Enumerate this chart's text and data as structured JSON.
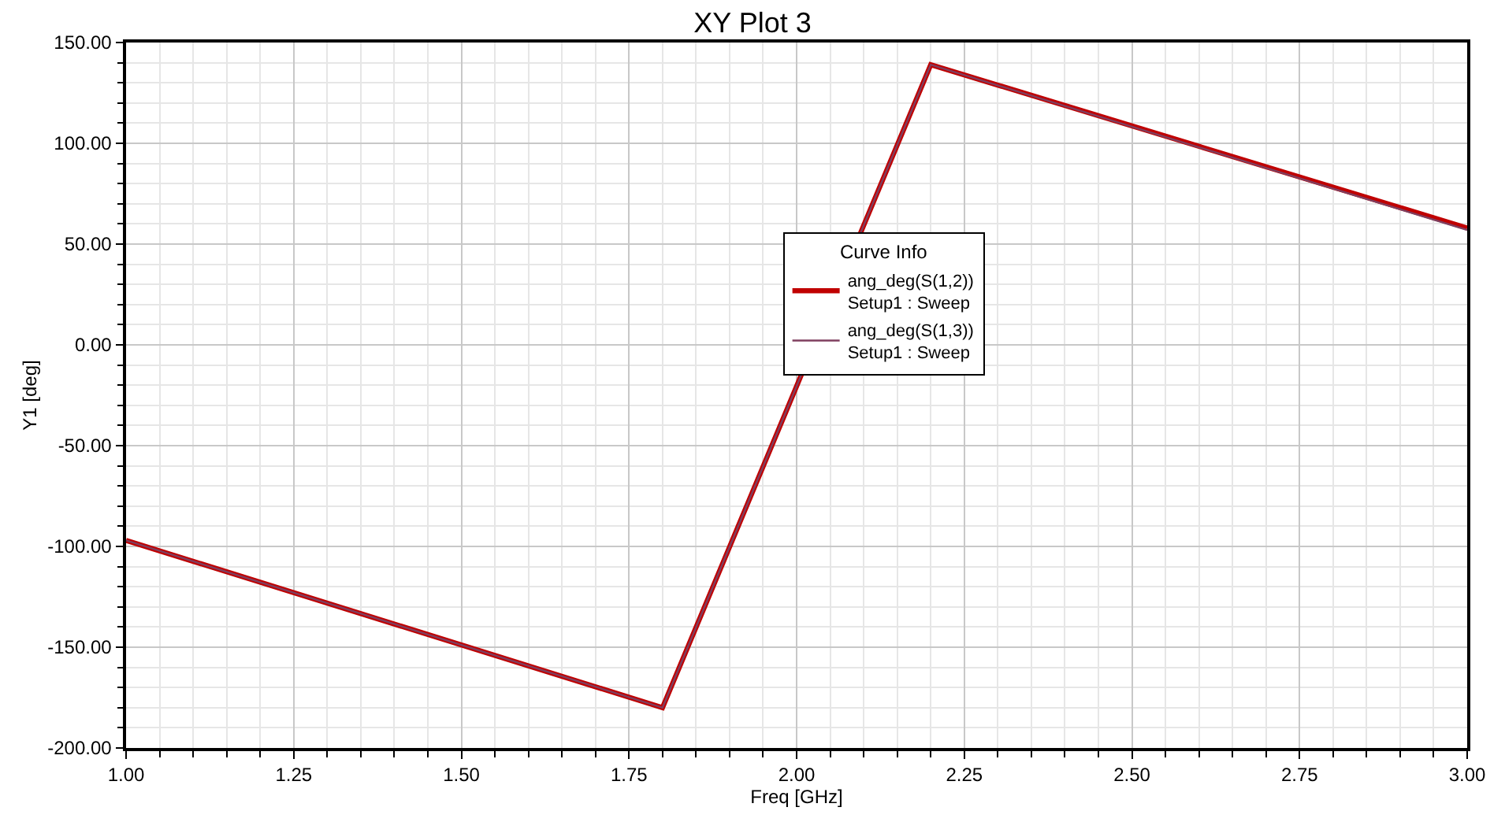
{
  "chart_data": {
    "type": "line",
    "title": "XY Plot 3",
    "xlabel": "Freq [GHz]",
    "ylabel": "Y1 [deg]",
    "legend_title": "Curve Info",
    "x": [
      1.0,
      1.8,
      2.2,
      3.0
    ],
    "series": [
      {
        "name": "ang_deg(S(1,2))\nSetup1 : Sweep",
        "color": "#c00000",
        "values": [
          -97,
          -180,
          139,
          58
        ]
      },
      {
        "name": "ang_deg(S(1,3))\nSetup1 : Sweep",
        "color": "#7f3f5f",
        "values": [
          -97,
          -180,
          139,
          57
        ]
      }
    ],
    "xlim": [
      1.0,
      3.0
    ],
    "xticks": [
      {
        "value": 1.0,
        "label": "1.00"
      },
      {
        "value": 1.25,
        "label": "1.25"
      },
      {
        "value": 1.5,
        "label": "1.50"
      },
      {
        "value": 1.75,
        "label": "1.75"
      },
      {
        "value": 2.0,
        "label": "2.00"
      },
      {
        "value": 2.25,
        "label": "2.25"
      },
      {
        "value": 2.5,
        "label": "2.50"
      },
      {
        "value": 2.75,
        "label": "2.75"
      },
      {
        "value": 3.0,
        "label": "3.00"
      }
    ],
    "ylim": [
      -200,
      150
    ],
    "yticks": [
      {
        "value": -200,
        "label": "-200.00"
      },
      {
        "value": -150,
        "label": "-150.00"
      },
      {
        "value": -100,
        "label": "-100.00"
      },
      {
        "value": -50,
        "label": "-50.00"
      },
      {
        "value": 0,
        "label": "0.00"
      },
      {
        "value": 50,
        "label": "50.00"
      },
      {
        "value": 100,
        "label": "100.00"
      },
      {
        "value": 150,
        "label": "150.00"
      }
    ],
    "grid": true,
    "legend": "center",
    "marker": "none",
    "line_style": "solid"
  }
}
